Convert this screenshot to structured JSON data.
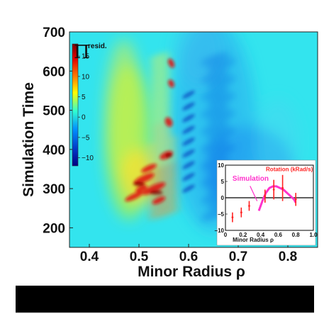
{
  "chart_data": [
    {
      "type": "heatmap",
      "xlabel": "Minor Radius ρ",
      "ylabel": "Simulation Time",
      "xlim": [
        0.36,
        0.86
      ],
      "ylim": [
        150,
        700
      ],
      "x_ticks": [
        "0.4",
        "0.5",
        "0.6",
        "0.7",
        "0.8"
      ],
      "x_tick_values": [
        0.4,
        0.5,
        0.6,
        0.7,
        0.8
      ],
      "y_ticks": [
        "200",
        "300",
        "400",
        "500",
        "600",
        "700"
      ],
      "y_tick_values": [
        200,
        300,
        400,
        500,
        600,
        700
      ],
      "colorbar": {
        "label": "Π",
        "label_superscript": "resid.",
        "range": [
          -12,
          18
        ],
        "ticks": [
          "15",
          "10",
          "5",
          "0",
          "−5",
          "−10"
        ],
        "tick_values": [
          15,
          10,
          5,
          0,
          -5,
          -10
        ]
      },
      "grid": false
    },
    {
      "type": "line",
      "inset": true,
      "xlabel": "Minor Radius ρ",
      "xlim": [
        0,
        1
      ],
      "ylim": [
        -10,
        10
      ],
      "x_ticks": [
        "0",
        "0.2",
        "0.4",
        "0.6",
        "0.8",
        "1.0"
      ],
      "x_tick_values": [
        0,
        0.2,
        0.4,
        0.6,
        0.8,
        1.0
      ],
      "y_ticks": [
        "10",
        "5",
        "0",
        "−5",
        "−10"
      ],
      "y_tick_values": [
        10,
        5,
        0,
        -5,
        -10
      ],
      "series": [
        {
          "name": "Simulation",
          "color": "#ff33cc",
          "x": [
            0.38,
            0.42,
            0.46,
            0.5,
            0.54,
            0.58,
            0.62,
            0.66,
            0.7,
            0.74,
            0.78,
            0.8
          ],
          "y": [
            -4,
            -1,
            1.5,
            3,
            3.5,
            3.5,
            3,
            2.5,
            1.5,
            0.5,
            -0.5,
            -1.5
          ]
        },
        {
          "name": "Rotation (kRad/s)",
          "color": "#ff2222",
          "x": [
            0.08,
            0.18,
            0.27,
            0.45,
            0.55,
            0.65,
            0.8
          ],
          "y": [
            -6,
            -4.5,
            -2.5,
            0.5,
            2.5,
            3,
            -0.5
          ],
          "yerr": [
            1.5,
            1.5,
            1.5,
            2,
            3,
            4,
            2
          ]
        }
      ],
      "zero_line": 0
    }
  ]
}
